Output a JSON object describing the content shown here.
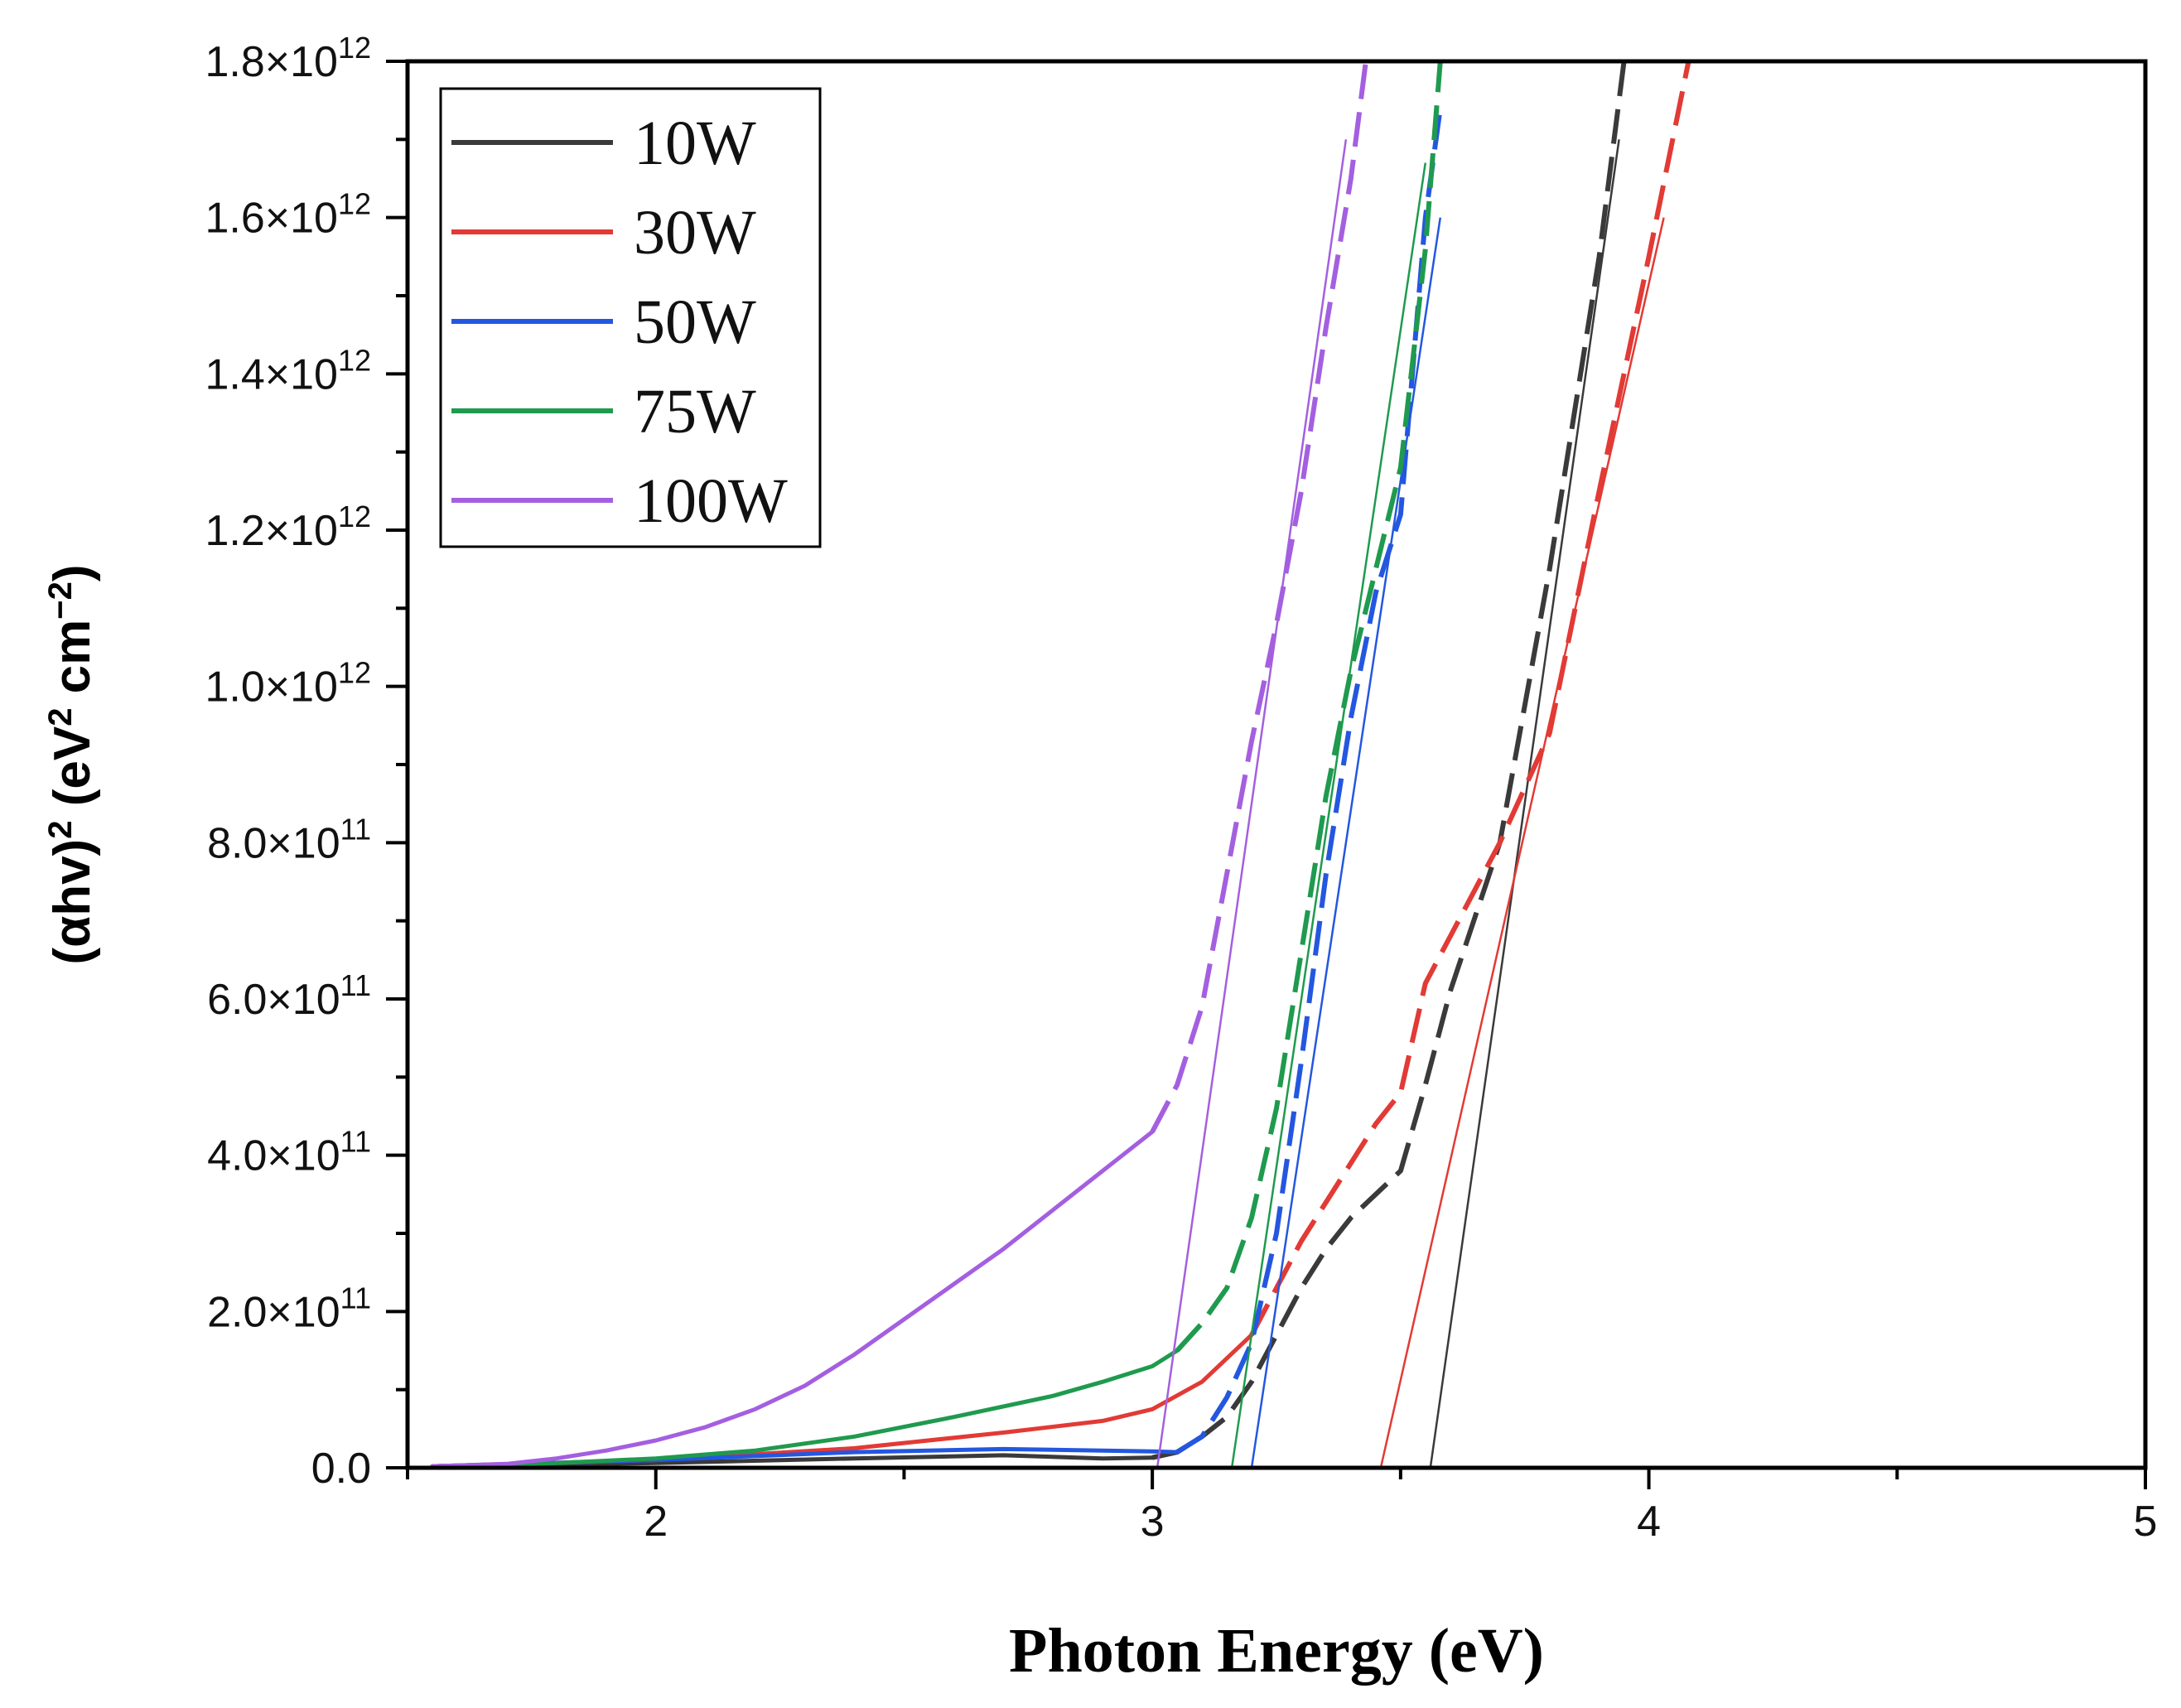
{
  "chart_data": {
    "type": "line",
    "title": "",
    "xlabel": "Photon Energy (eV)",
    "ylabel": "(αhv)² (eV² cm⁻²)",
    "xlim": [
      1.5,
      5
    ],
    "ylim": [
      0,
      1800000000000.0
    ],
    "x_ticks": [
      2,
      3,
      4,
      5
    ],
    "x_tick_labels": [
      "2",
      "3",
      "4",
      "5"
    ],
    "y_ticks": [
      0,
      200000000000.0,
      400000000000.0,
      600000000000.0,
      800000000000.0,
      1000000000000.0,
      1200000000000.0,
      1400000000000.0,
      1600000000000.0,
      1800000000000.0
    ],
    "y_tick_labels": [
      {
        "mantissa": "0.0",
        "exp": ""
      },
      {
        "mantissa": "2.0×10",
        "exp": "11"
      },
      {
        "mantissa": "4.0×10",
        "exp": "11"
      },
      {
        "mantissa": "6.0×10",
        "exp": "11"
      },
      {
        "mantissa": "8.0×10",
        "exp": "11"
      },
      {
        "mantissa": "1.0×10",
        "exp": "12"
      },
      {
        "mantissa": "1.2×10",
        "exp": "12"
      },
      {
        "mantissa": "1.4×10",
        "exp": "12"
      },
      {
        "mantissa": "1.6×10",
        "exp": "12"
      },
      {
        "mantissa": "1.8×10",
        "exp": "12"
      }
    ],
    "legend_position": "top-left",
    "series": [
      {
        "name": "10W",
        "color": "#3a3a3a",
        "solid": {
          "x": [
            1.55,
            2.0,
            2.4,
            2.7,
            2.9,
            3.0
          ],
          "y": [
            2000000000.0,
            6000000000.0,
            12000000000.0,
            16000000000.0,
            12000000000.0,
            13000000000.0
          ]
        },
        "dashed": {
          "x": [
            3.0,
            3.05,
            3.1,
            3.15,
            3.2,
            3.25,
            3.3,
            3.35,
            3.4,
            3.45,
            3.5,
            3.55,
            3.6,
            3.7,
            3.8,
            3.9,
            3.95
          ],
          "y": [
            13000000000.0,
            20000000000.0,
            40000000000.0,
            65000000000.0,
            110000000000.0,
            170000000000.0,
            230000000000.0,
            280000000000.0,
            320000000000.0,
            350000000000.0,
            380000000000.0,
            490000000000.0,
            610000000000.0,
            800000000000.0,
            1150000000000.0,
            1550000000000.0,
            1800000000000.0
          ]
        },
        "fit": {
          "x": [
            3.56,
            3.94
          ],
          "y": [
            0,
            1700000000000.0
          ]
        }
      },
      {
        "name": "30W",
        "color": "#e23a35",
        "solid": {
          "x": [
            1.55,
            2.0,
            2.4,
            2.7,
            2.9,
            3.0,
            3.1,
            3.2
          ],
          "y": [
            2000000000.0,
            10000000000.0,
            25000000000.0,
            45000000000.0,
            60000000000.0,
            75000000000.0,
            110000000000.0,
            170000000000.0
          ]
        },
        "dashed": {
          "x": [
            3.2,
            3.3,
            3.4,
            3.45,
            3.5,
            3.55,
            3.6,
            3.7,
            3.8,
            3.9,
            4.0,
            4.08
          ],
          "y": [
            170000000000.0,
            290000000000.0,
            390000000000.0,
            440000000000.0,
            480000000000.0,
            620000000000.0,
            680000000000.0,
            800000000000.0,
            940000000000.0,
            1250000000000.0,
            1550000000000.0,
            1800000000000.0
          ]
        },
        "fit": {
          "x": [
            3.46,
            4.03
          ],
          "y": [
            0,
            1600000000000.0
          ]
        }
      },
      {
        "name": "50W",
        "color": "#2457e0",
        "solid": {
          "x": [
            1.55,
            2.0,
            2.4,
            2.7,
            2.9,
            3.0,
            3.05
          ],
          "y": [
            2000000000.0,
            10000000000.0,
            20000000000.0,
            24000000000.0,
            22000000000.0,
            21000000000.0,
            20000000000.0
          ]
        },
        "dashed": {
          "x": [
            3.05,
            3.1,
            3.15,
            3.2,
            3.25,
            3.3,
            3.35,
            3.4,
            3.45,
            3.5,
            3.55,
            3.58
          ],
          "y": [
            20000000000.0,
            40000000000.0,
            90000000000.0,
            160000000000.0,
            300000000000.0,
            520000000000.0,
            760000000000.0,
            960000000000.0,
            1120000000000.0,
            1220000000000.0,
            1600000000000.0,
            1740000000000.0
          ]
        },
        "fit": {
          "x": [
            3.2,
            3.58
          ],
          "y": [
            0,
            1600000000000.0
          ]
        }
      },
      {
        "name": "75W",
        "color": "#1f9a4e",
        "solid": {
          "x": [
            1.55,
            1.8,
            2.0,
            2.2,
            2.4,
            2.6,
            2.8,
            2.9,
            3.0,
            3.05
          ],
          "y": [
            2000000000.0,
            6000000000.0,
            12000000000.0,
            22000000000.0,
            40000000000.0,
            65000000000.0,
            92000000000.0,
            110000000000.0,
            130000000000.0,
            150000000000.0
          ]
        },
        "dashed": {
          "x": [
            3.05,
            3.1,
            3.15,
            3.2,
            3.25,
            3.3,
            3.35,
            3.4,
            3.45,
            3.5,
            3.55,
            3.58
          ],
          "y": [
            150000000000.0,
            185000000000.0,
            230000000000.0,
            320000000000.0,
            460000000000.0,
            660000000000.0,
            860000000000.0,
            1020000000000.0,
            1150000000000.0,
            1280000000000.0,
            1560000000000.0,
            1800000000000.0
          ]
        },
        "fit": {
          "x": [
            3.16,
            3.55
          ],
          "y": [
            0,
            1670000000000.0
          ]
        }
      },
      {
        "name": "100W",
        "color": "#a45fe0",
        "solid": {
          "x": [
            1.55,
            1.7,
            1.8,
            1.9,
            2.0,
            2.1,
            2.2,
            2.3,
            2.4,
            2.5,
            2.6,
            2.7,
            2.8,
            2.9,
            3.0
          ],
          "y": [
            2000000000.0,
            5000000000.0,
            12000000000.0,
            22000000000.0,
            35000000000.0,
            52000000000.0,
            75000000000.0,
            105000000000.0,
            145000000000.0,
            190000000000.0,
            235000000000.0,
            280000000000.0,
            330000000000.0,
            380000000000.0,
            430000000000.0
          ]
        },
        "dashed": {
          "x": [
            3.0,
            3.05,
            3.1,
            3.15,
            3.2,
            3.25,
            3.3,
            3.35,
            3.4,
            3.43
          ],
          "y": [
            430000000000.0,
            490000000000.0,
            590000000000.0,
            760000000000.0,
            930000000000.0,
            1080000000000.0,
            1250000000000.0,
            1460000000000.0,
            1650000000000.0,
            1800000000000.0
          ]
        },
        "fit": {
          "x": [
            3.01,
            3.39
          ],
          "y": [
            0,
            1700000000000.0
          ]
        }
      }
    ]
  }
}
